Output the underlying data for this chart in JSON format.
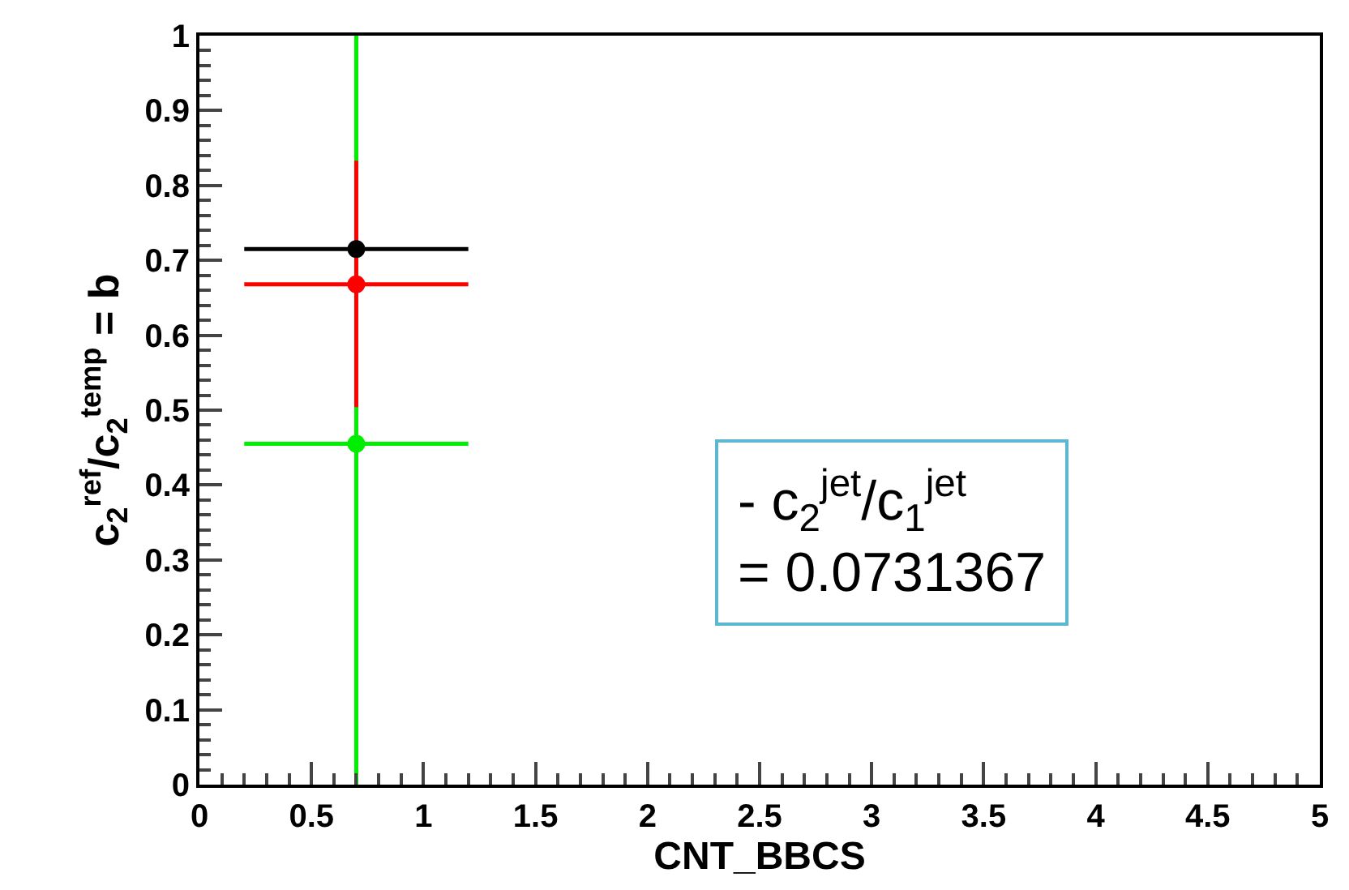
{
  "chart_data": {
    "type": "scatter",
    "xlabel": "CNT_BBCS",
    "ylabel": "c$_{2}$$^{ref}$/c$_{2}$$^{temp}$ = b",
    "series": [
      {
        "color": "#000000",
        "values": [
          0.715
        ],
        "xerrors": [
          [
            0.2,
            1.2
          ]
        ]
      },
      {
        "color": "#ff0000",
        "values": [
          0.668
        ],
        "errors": [
          [
            0.504,
            0.833
          ]
        ],
        "xerrors": [
          [
            0.2,
            1.2
          ]
        ]
      },
      {
        "color": "#00ee00",
        "values": [
          0.455
        ],
        "errors": [
          [
            0,
            1
          ]
        ],
        "xerrors": [
          [
            0.2,
            1.2
          ]
        ]
      }
    ],
    "x": [
      0.7
    ],
    "xlim": [
      0,
      5
    ],
    "xticks": [
      0,
      0.5,
      1,
      1.5,
      2,
      2.5,
      3,
      3.5,
      4,
      4.5,
      5
    ],
    "ylim": [
      0,
      1
    ],
    "yticks": [
      0,
      0.1,
      0.2,
      0.3,
      0.4,
      0.5,
      0.6,
      0.7,
      0.8,
      0.9,
      1
    ],
    "marker": "circle",
    "annotations": [
      "- c$_{2}$$^{jet}$/c$_{1}$$^{jet}$\n= 0.0731367"
    ]
  }
}
